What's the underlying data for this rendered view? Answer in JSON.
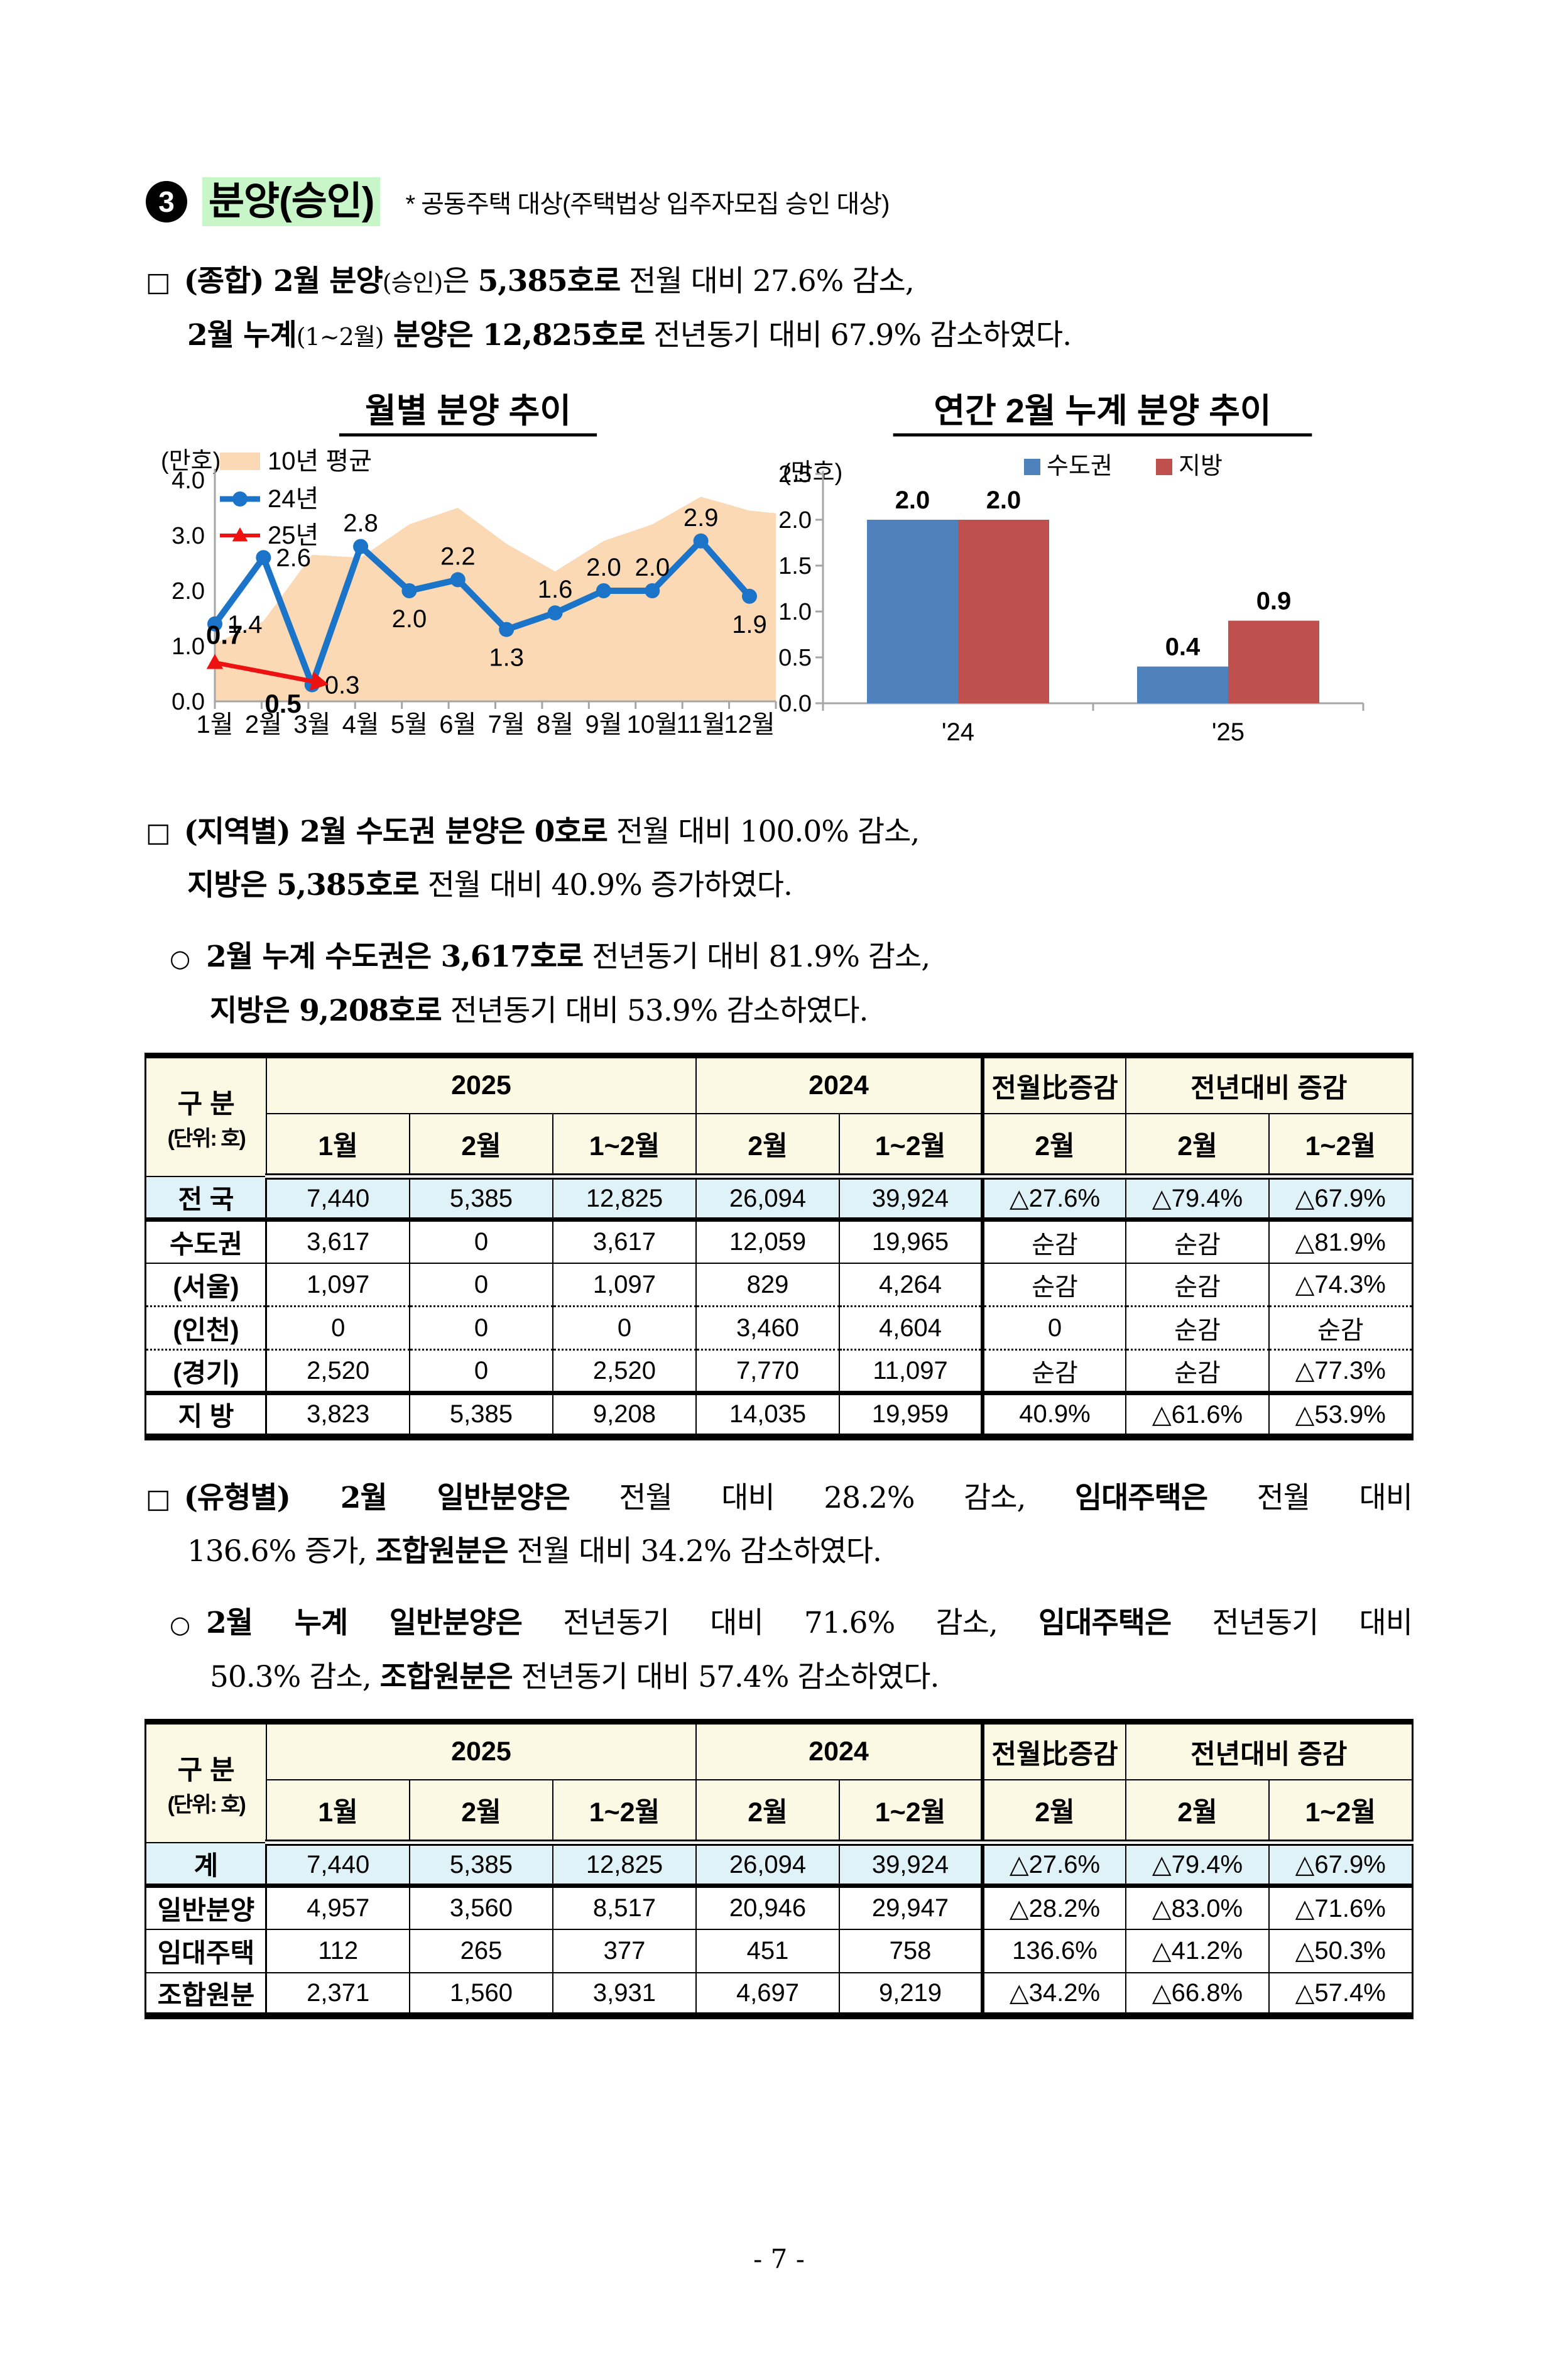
{
  "page": {
    "number": "- 7 -"
  },
  "header": {
    "bullet": "3",
    "title": "분양(승인)",
    "note": "* 공동주택 대상(주택법상 입주자모집 승인 대상)",
    "highlight_color": "#c9f6c9"
  },
  "paragraphs": [
    {
      "style": "box",
      "marker": "□",
      "lines": [
        {
          "runs": [
            {
              "t": "(종합) 2월 분양",
              "b": 1
            },
            {
              "t": "(승인)",
              "sm": 1
            },
            {
              "t": "은 "
            },
            {
              "t": "5,385호로",
              "b": 1
            },
            {
              "t": " 전월 대비 27.6% 감소,"
            }
          ]
        },
        {
          "runs": [
            {
              "t": "2월 누계",
              "b": 1
            },
            {
              "t": "(1~2월)",
              "sm": 1
            },
            {
              "t": " 분양은 12,825호로",
              "b": 1
            },
            {
              "t": " 전년동기 대비 67.9% 감소하였다."
            }
          ]
        }
      ]
    },
    {
      "style": "box",
      "marker": "□",
      "lines": [
        {
          "runs": [
            {
              "t": "(지역별) 2월 수도권 분양은 0호로",
              "b": 1
            },
            {
              "t": " 전월 대비 100.0% 감소,"
            }
          ]
        },
        {
          "runs": [
            {
              "t": "지방은 5,385호로",
              "b": 1
            },
            {
              "t": " 전월 대비 40.9% 증가하였다."
            }
          ]
        }
      ]
    },
    {
      "style": "circle",
      "marker": "○",
      "lines": [
        {
          "runs": [
            {
              "t": "2월 누계 수도권은 3,617호로",
              "b": 1
            },
            {
              "t": " 전년동기 대비 81.9% 감소,"
            }
          ]
        },
        {
          "runs": [
            {
              "t": "지방은 9,208호로",
              "b": 1
            },
            {
              "t": " 전년동기 대비 53.9% 감소하였다."
            }
          ]
        }
      ]
    },
    {
      "style": "box",
      "marker": "□",
      "lines": [
        {
          "just": true,
          "runs": [
            {
              "t": "(유형별) 2월 일반분양은",
              "b": 1
            },
            {
              "t": " 전월 대비 28.2% 감소, "
            },
            {
              "t": "임대주택은",
              "b": 1
            },
            {
              "t": " 전월 대비"
            }
          ]
        },
        {
          "runs": [
            {
              "t": "136.6% 증가, "
            },
            {
              "t": "조합원분은",
              "b": 1
            },
            {
              "t": " 전월 대비 34.2% 감소하였다."
            }
          ]
        }
      ]
    },
    {
      "style": "circle",
      "marker": "○",
      "lines": [
        {
          "just": true,
          "runs": [
            {
              "t": "2월 누계 일반분양은",
              "b": 1
            },
            {
              "t": " 전년동기 대비 71.6% 감소, "
            },
            {
              "t": "임대주택은",
              "b": 1
            },
            {
              "t": " 전년동기 대비"
            }
          ]
        },
        {
          "runs": [
            {
              "t": "50.3% 감소, "
            },
            {
              "t": "조합원분은",
              "b": 1
            },
            {
              "t": " 전년동기 대비 57.4% 감소하였다."
            }
          ]
        }
      ]
    }
  ],
  "chart_data": [
    {
      "type": "area+line",
      "title": "월별 분양 추이",
      "unit": "(만호)",
      "categories": [
        "1월",
        "2월",
        "3월",
        "4월",
        "5월",
        "6월",
        "7월",
        "8월",
        "9월",
        "10월",
        "11월",
        "12월"
      ],
      "ylim": [
        0,
        4.0
      ],
      "yticks": [
        0.0,
        1.0,
        2.0,
        3.0,
        4.0
      ],
      "grid": false,
      "legend_position": "top-left",
      "series": [
        {
          "name": "10년 평균",
          "type": "area",
          "color": "#fbd9b5",
          "values": [
            1.05,
            1.45,
            2.65,
            2.6,
            3.2,
            3.5,
            2.85,
            2.35,
            2.9,
            3.2,
            3.7,
            3.45
          ]
        },
        {
          "name": "24년",
          "type": "line",
          "marker": "circle",
          "color": "#1b74c8",
          "values": [
            1.4,
            2.6,
            0.3,
            2.8,
            2.0,
            2.2,
            1.3,
            1.6,
            2.0,
            2.0,
            2.9,
            1.9
          ],
          "label_pos": [
            "right",
            "right",
            "right",
            "above",
            "below",
            "above",
            "below",
            "above",
            "above",
            "above",
            "above",
            "below"
          ]
        },
        {
          "name": "25년",
          "type": "arrow-line",
          "marker": "triangle",
          "color": "#ee1111",
          "values": [
            0.7,
            0.5
          ],
          "bold_labels": true
        }
      ]
    },
    {
      "type": "bar",
      "title": "연간 2월 누계 분양 추이",
      "unit": "(만호)",
      "categories": [
        "'24",
        "'25"
      ],
      "ylim": [
        0,
        2.5
      ],
      "ytick_step": 0.5,
      "grid": false,
      "legend_position": "top-center",
      "series": [
        {
          "name": "수도권",
          "color": "#4f81bd",
          "values": [
            2.0,
            0.4
          ]
        },
        {
          "name": "지방",
          "color": "#c0504d",
          "values": [
            2.0,
            0.9
          ]
        }
      ]
    }
  ],
  "tables": [
    {
      "header": {
        "corner": [
          "구 분",
          "(단위: 호)"
        ],
        "groups": [
          {
            "label": "2025",
            "cols": [
              "1월",
              "2월",
              "1~2월"
            ]
          },
          {
            "label": "2024",
            "cols": [
              "2월",
              "1~2월"
            ]
          },
          {
            "label": "전월比증감",
            "cols": [
              "2월"
            ]
          },
          {
            "label": "전년대비 증감",
            "cols": [
              "2월",
              "1~2월"
            ]
          }
        ]
      },
      "rows": [
        {
          "label": "전 국",
          "cls": "total",
          "cells": [
            "7,440",
            "5,385",
            "12,825",
            "26,094",
            "39,924",
            "△27.6%",
            "△79.4%",
            "△67.9%"
          ]
        },
        {
          "label": "수도권",
          "cls": "mid",
          "cells": [
            "3,617",
            "0",
            "3,617",
            "12,059",
            "19,965",
            "순감",
            "순감",
            "△81.9%"
          ]
        },
        {
          "label": "(서울)",
          "cls": "dot",
          "cells": [
            "1,097",
            "0",
            "1,097",
            "829",
            "4,264",
            "순감",
            "순감",
            "△74.3%"
          ]
        },
        {
          "label": "(인천)",
          "cls": "dot",
          "cells": [
            "0",
            "0",
            "0",
            "3,460",
            "4,604",
            "0",
            "순감",
            "순감"
          ]
        },
        {
          "label": "(경기)",
          "cls": "thick",
          "cells": [
            "2,520",
            "0",
            "2,520",
            "7,770",
            "11,097",
            "순감",
            "순감",
            "△77.3%"
          ]
        },
        {
          "label": "지 방",
          "cls": "last",
          "cells": [
            "3,823",
            "5,385",
            "9,208",
            "14,035",
            "19,959",
            "40.9%",
            "△61.6%",
            "△53.9%"
          ]
        }
      ]
    },
    {
      "header": {
        "corner": [
          "구 분",
          "(단위: 호)"
        ],
        "groups": [
          {
            "label": "2025",
            "cols": [
              "1월",
              "2월",
              "1~2월"
            ]
          },
          {
            "label": "2024",
            "cols": [
              "2월",
              "1~2월"
            ]
          },
          {
            "label": "전월比증감",
            "cols": [
              "2월"
            ]
          },
          {
            "label": "전년대비 증감",
            "cols": [
              "2월",
              "1~2월"
            ]
          }
        ]
      },
      "rows": [
        {
          "label": "계",
          "cls": "total",
          "cells": [
            "7,440",
            "5,385",
            "12,825",
            "26,094",
            "39,924",
            "△27.6%",
            "△79.4%",
            "△67.9%"
          ]
        },
        {
          "label": "일반분양",
          "cls": "mid",
          "cells": [
            "4,957",
            "3,560",
            "8,517",
            "20,946",
            "29,947",
            "△28.2%",
            "△83.0%",
            "△71.6%"
          ]
        },
        {
          "label": "임대주택",
          "cls": "mid",
          "cells": [
            "112",
            "265",
            "377",
            "451",
            "758",
            "136.6%",
            "△41.2%",
            "△50.3%"
          ]
        },
        {
          "label": "조합원분",
          "cls": "last",
          "cells": [
            "2,371",
            "1,560",
            "3,931",
            "4,697",
            "9,219",
            "△34.2%",
            "△66.8%",
            "△57.4%"
          ]
        }
      ]
    }
  ]
}
